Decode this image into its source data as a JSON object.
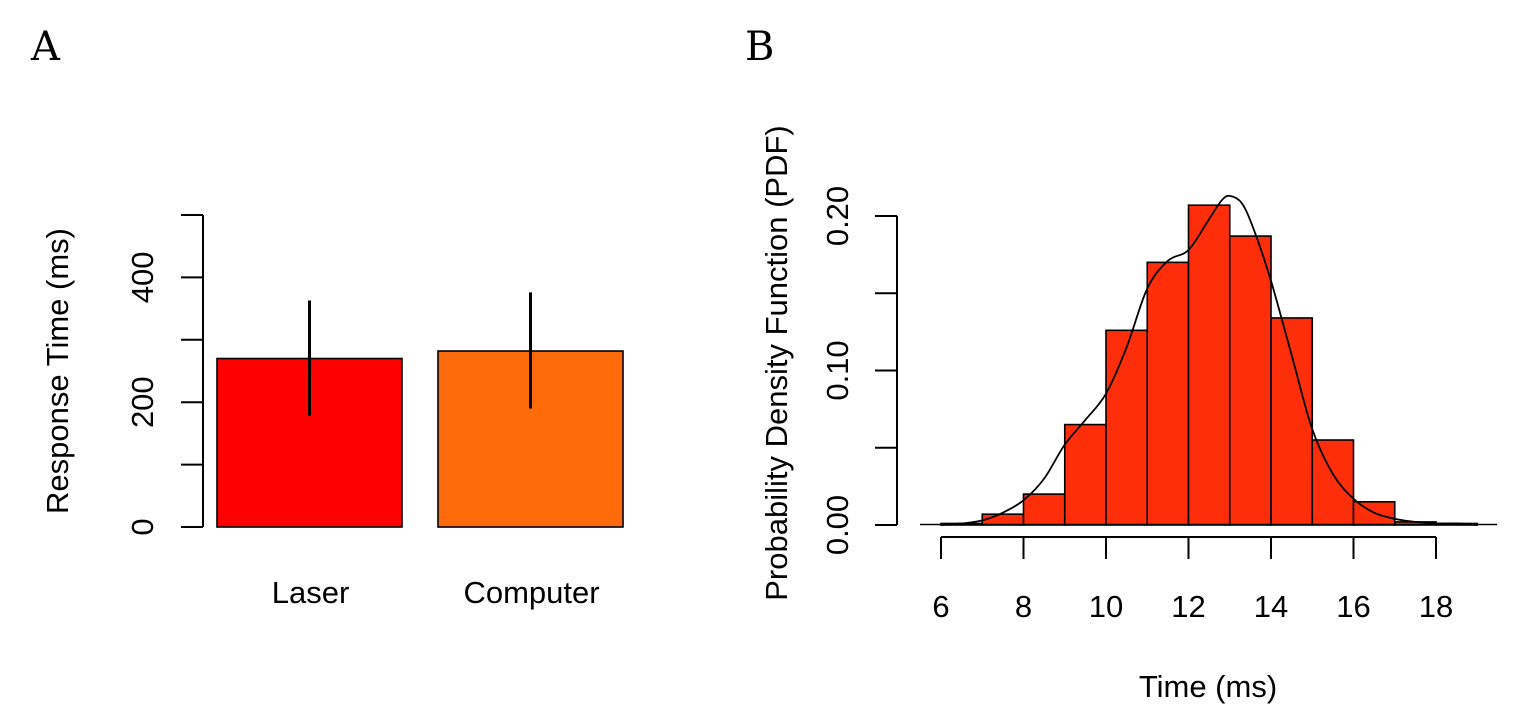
{
  "chart_data": [
    {
      "panel": "A",
      "type": "bar",
      "categories": [
        "Laser",
        "Computer"
      ],
      "values": [
        270,
        282
      ],
      "error_bars": [
        {
          "low": 178,
          "high": 363
        },
        {
          "low": 190,
          "high": 376
        }
      ],
      "colors": [
        "#ff0000",
        "#ff6a0a"
      ],
      "xlabel": "",
      "ylabel": "Response Time (ms)",
      "ylim": [
        0,
        500
      ],
      "yticks": [
        0,
        100,
        200,
        300,
        400,
        500
      ],
      "ytick_labels": [
        "0",
        "",
        "200",
        "",
        "400",
        ""
      ],
      "grid": false,
      "legend": "none"
    },
    {
      "panel": "B",
      "type": "bar",
      "subtype": "histogram-with-density",
      "bins": [
        {
          "x0": 6,
          "x1": 7,
          "y": 0.001
        },
        {
          "x0": 7,
          "x1": 8,
          "y": 0.007
        },
        {
          "x0": 8,
          "x1": 9,
          "y": 0.02
        },
        {
          "x0": 9,
          "x1": 10,
          "y": 0.065
        },
        {
          "x0": 10,
          "x1": 11,
          "y": 0.126
        },
        {
          "x0": 11,
          "x1": 12,
          "y": 0.17
        },
        {
          "x0": 12,
          "x1": 13,
          "y": 0.207
        },
        {
          "x0": 13,
          "x1": 14,
          "y": 0.187
        },
        {
          "x0": 14,
          "x1": 15,
          "y": 0.134
        },
        {
          "x0": 15,
          "x1": 16,
          "y": 0.055
        },
        {
          "x0": 16,
          "x1": 17,
          "y": 0.015
        },
        {
          "x0": 17,
          "x1": 18,
          "y": 0.002
        },
        {
          "x0": 18,
          "x1": 19,
          "y": 0.001
        }
      ],
      "density_curve": {
        "x": [
          6.0,
          6.5,
          7.0,
          7.5,
          8.0,
          8.5,
          9.0,
          9.5,
          10.0,
          10.5,
          11.0,
          11.5,
          12.0,
          12.5,
          12.8,
          13.0,
          13.3,
          13.6,
          14.0,
          14.5,
          15.0,
          15.5,
          16.0,
          16.5,
          17.0,
          17.5,
          18.0,
          18.5,
          19.0
        ],
        "y": [
          0.0,
          0.001,
          0.003,
          0.008,
          0.016,
          0.03,
          0.052,
          0.068,
          0.085,
          0.115,
          0.153,
          0.171,
          0.178,
          0.198,
          0.21,
          0.213,
          0.208,
          0.19,
          0.158,
          0.11,
          0.062,
          0.033,
          0.017,
          0.008,
          0.004,
          0.002,
          0.001,
          0.001,
          0.0
        ]
      },
      "bar_color": "#ff2e0a",
      "line_color": "#000000",
      "xlabel": "Time (ms)",
      "ylabel": "Probability Density Function (PDF)",
      "xlim": [
        6,
        18
      ],
      "xticks": [
        6,
        8,
        10,
        12,
        14,
        16,
        18
      ],
      "xtick_labels": [
        "6",
        "8",
        "10",
        "12",
        "14",
        "16",
        "18"
      ],
      "ylim": [
        0,
        0.2
      ],
      "yticks": [
        0,
        0.05,
        0.1,
        0.15,
        0.2
      ],
      "ytick_labels": [
        "0.00",
        "",
        "0.10",
        "",
        "0.20"
      ],
      "grid": false,
      "legend": "none"
    }
  ]
}
